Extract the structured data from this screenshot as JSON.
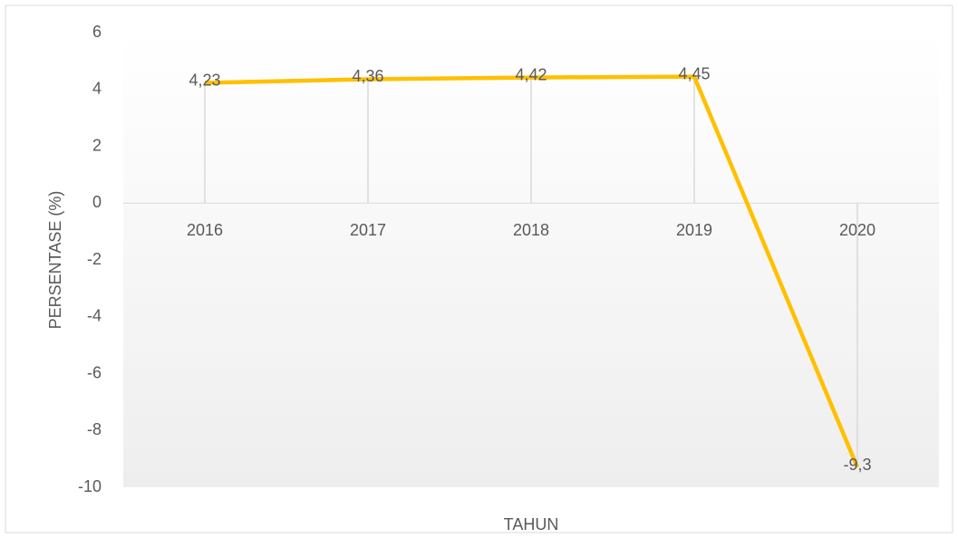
{
  "chart_data": {
    "type": "line",
    "x_label": "TAHUN",
    "y_label": "PERSENTASE (%)",
    "categories": [
      "2016",
      "2017",
      "2018",
      "2019",
      "2020"
    ],
    "values": [
      4.23,
      4.36,
      4.42,
      4.45,
      -9.3
    ],
    "value_labels": [
      "4,23",
      "4,36",
      "4,42",
      "4,45",
      "-9,3"
    ],
    "color": "#ffc000",
    "ylim": [
      -10,
      6
    ],
    "yticks": [
      -10,
      -8,
      -6,
      -4,
      -2,
      0,
      2,
      4,
      6
    ],
    "grid": false,
    "drop_lines": true
  }
}
